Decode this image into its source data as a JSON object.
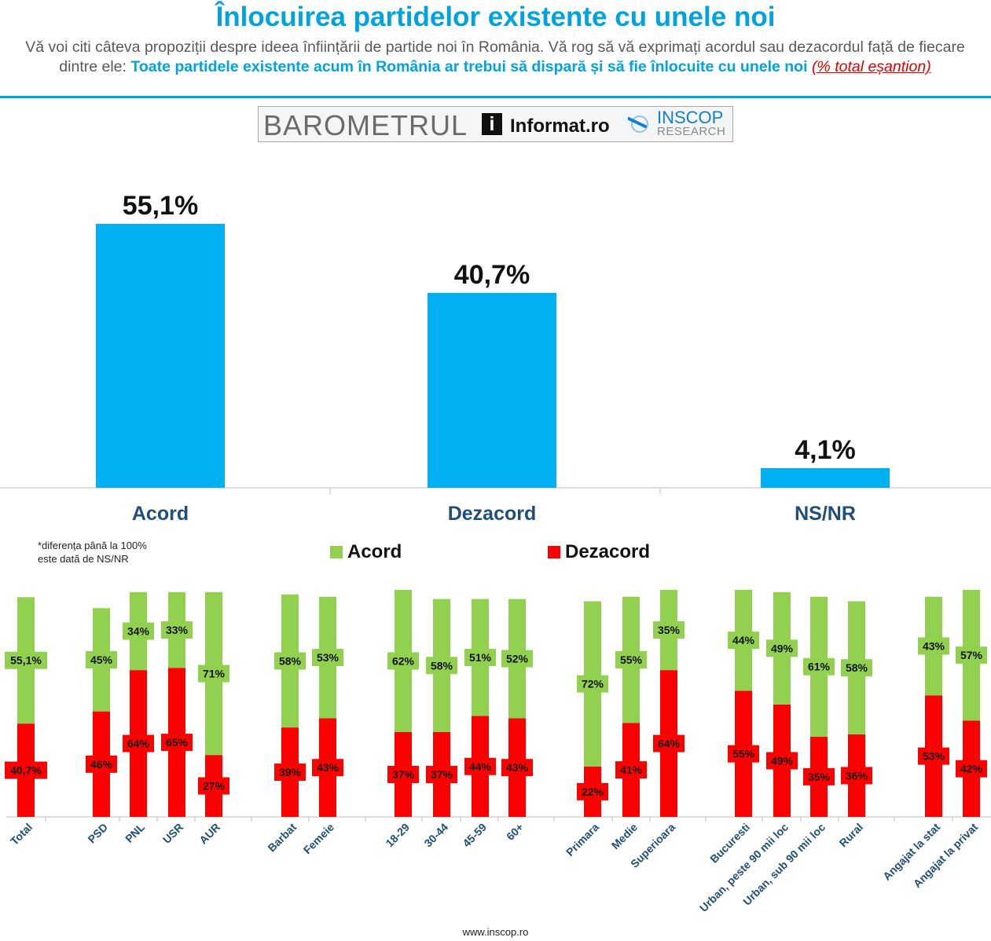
{
  "header": {
    "title": "Înlocuirea partidelor existente cu unele noi",
    "subtitle_plain": "Vă voi citi câteva propoziții despre ideea înființării de partide noi în România. Vă rog să vă exprimați acordul sau dezacordul față de fiecare dintre ele: ",
    "subtitle_highlight": "Toate partidele existente acum în România ar trebui să dispară și să fie înlocuite cu unele noi",
    "subtitle_note": "(% total eșantion)"
  },
  "banner": {
    "barometrul": "BAROMETRUL",
    "informat_icon": "i",
    "informat": "Informat.ro",
    "inscop": "INSCOP",
    "research": "RESEARCH"
  },
  "footnote": {
    "line1": "*diferența până la 100%",
    "line2": "este dată de NS/NR"
  },
  "footer": {
    "url": "www.inscop.ro"
  },
  "colors": {
    "title_blue": "#00a3e0",
    "bar_blue": "#00b0f0",
    "category_label": "#1f4e79",
    "agree_green": "#92d050",
    "disagree_red": "#ff0000"
  },
  "chart_data": [
    {
      "type": "bar",
      "title": "Înlocuirea partidelor existente cu unele noi",
      "categories": [
        "Acord",
        "Dezacord",
        "NS/NR"
      ],
      "values": [
        55.1,
        40.7,
        4.1
      ],
      "value_labels": [
        "55,1%",
        "40,7%",
        "4,1%"
      ],
      "ylim": [
        0,
        60
      ],
      "grid": false
    },
    {
      "type": "bar",
      "stacked": true,
      "legend": {
        "position": "top",
        "entries": [
          "Acord",
          "Dezacord"
        ]
      },
      "series": [
        {
          "name": "Acord",
          "values": [
            55.1,
            45,
            34,
            33,
            71,
            58,
            53,
            62,
            58,
            51,
            52,
            72,
            55,
            35,
            44,
            49,
            61,
            58,
            43,
            57
          ],
          "labels": [
            "55,1%",
            "45%",
            "34%",
            "33%",
            "71%",
            "58%",
            "53%",
            "62%",
            "58%",
            "51%",
            "52%",
            "72%",
            "55%",
            "35%",
            "44%",
            "49%",
            "61%",
            "58%",
            "43%",
            "57%"
          ]
        },
        {
          "name": "Dezacord",
          "values": [
            40.7,
            46,
            64,
            65,
            27,
            39,
            43,
            37,
            37,
            44,
            43,
            22,
            41,
            64,
            55,
            49,
            35,
            36,
            53,
            42
          ],
          "labels": [
            "40,7%",
            "46%",
            "64%",
            "65%",
            "27%",
            "39%",
            "43%",
            "37%",
            "37%",
            "44%",
            "43%",
            "22%",
            "41%",
            "64%",
            "55%",
            "49%",
            "35%",
            "36%",
            "53%",
            "42%"
          ]
        }
      ],
      "categories": [
        "Total",
        "PSD",
        "PNL",
        "USR",
        "AUR",
        "Barbat",
        "Femeie",
        "18-29",
        "30-44",
        "45-59",
        "60+",
        "Primara",
        "Medie",
        "Superioara",
        "Bucuresti",
        "Urban, peste 90 mii loc",
        "Urban, sub 90 mii loc",
        "Rural",
        "Angajat la stat",
        "Angajat la privat"
      ],
      "groups": [
        [
          0
        ],
        [
          1,
          2,
          3,
          4
        ],
        [
          5,
          6
        ],
        [
          7,
          8,
          9,
          10
        ],
        [
          11,
          12,
          13
        ],
        [
          14,
          15,
          16,
          17
        ],
        [
          18,
          19
        ]
      ],
      "ylim": [
        0,
        100
      ]
    }
  ]
}
